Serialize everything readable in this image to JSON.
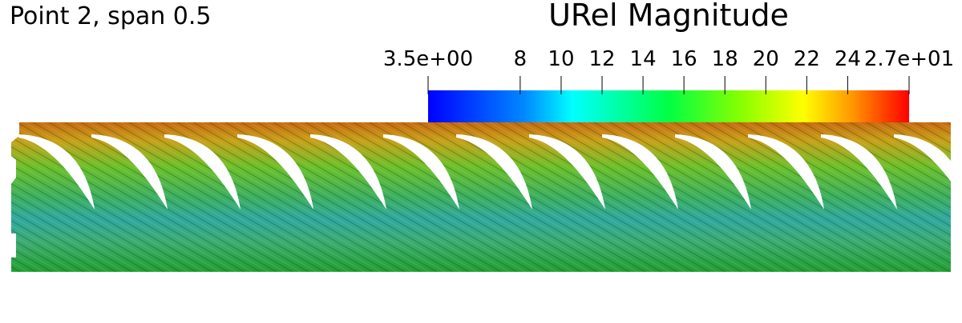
{
  "title": "Point 2, span 0.5",
  "colorbar": {
    "title": "URel Magnitude",
    "range": [
      3.5,
      27
    ],
    "ticks": [
      {
        "value": 3.5,
        "label": "3.5e+00"
      },
      8,
      10,
      12,
      14,
      16,
      18,
      20,
      22,
      24,
      {
        "value": 27,
        "label": "2.7e+01"
      }
    ]
  }
}
